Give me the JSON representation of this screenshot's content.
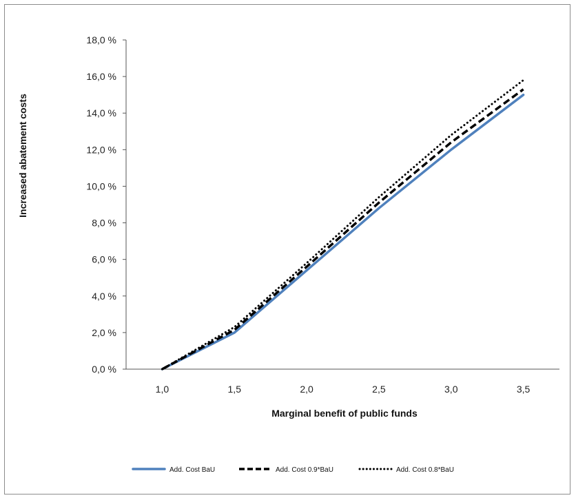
{
  "chart_data": {
    "type": "line",
    "xlabel": "Marginal  benefit of public funds",
    "ylabel": "Increased  abatement costs",
    "xlim": [
      0.75,
      3.75
    ],
    "ylim": [
      0,
      18
    ],
    "x": [
      1.0,
      1.5,
      2.0,
      2.5,
      3.0,
      3.5
    ],
    "x_tick_labels": [
      "1,0",
      "1,5",
      "2,0",
      "2,5",
      "3,0",
      "3,5"
    ],
    "y_ticks": [
      0,
      2,
      4,
      6,
      8,
      10,
      12,
      14,
      16,
      18
    ],
    "y_tick_labels": [
      "0,0 %",
      "2,0 %",
      "4,0 %",
      "6,0 %",
      "8,0 %",
      "10,0 %",
      "12,0 %",
      "14,0 %",
      "16,0 %",
      "18,0 %"
    ],
    "grid": false,
    "legend_position": "bottom",
    "series": [
      {
        "name": "Add. Cost BaU",
        "values": [
          0.0,
          2.0,
          5.4,
          8.8,
          12.0,
          15.0
        ],
        "color": "#4f81bd",
        "style": "solid"
      },
      {
        "name": "Add. Cost 0.9*BaU",
        "values": [
          0.0,
          2.15,
          5.6,
          9.1,
          12.4,
          15.3
        ],
        "color": "#000000",
        "style": "dashed"
      },
      {
        "name": "Add. Cost 0.8*BaU",
        "values": [
          0.0,
          2.3,
          5.8,
          9.4,
          12.8,
          15.8
        ],
        "color": "#000000",
        "style": "dotted"
      }
    ]
  }
}
